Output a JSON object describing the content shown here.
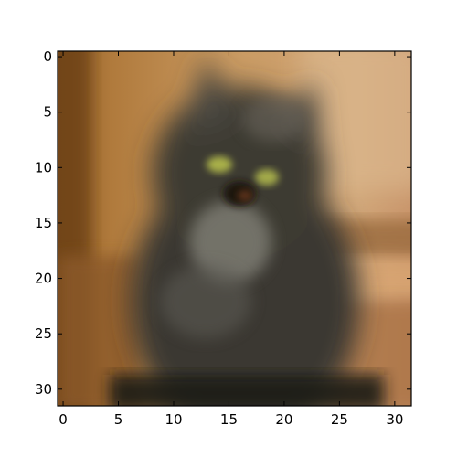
{
  "image": {
    "subject": "blurry-cat-photo",
    "pixel_grid": [
      32,
      32
    ],
    "colors": {
      "background_wood": "#b5824a",
      "cat_fur_dark": "#3a362f",
      "cat_chest_light": "#7a7870",
      "eyes": "#a9b04a",
      "frame": "#000000"
    }
  },
  "axes": {
    "x_tick_labels": [
      "0",
      "5",
      "10",
      "15",
      "20",
      "25",
      "30"
    ],
    "y_tick_labels": [
      "0",
      "5",
      "10",
      "15",
      "20",
      "25",
      "30"
    ],
    "x_tick_values": [
      0,
      5,
      10,
      15,
      20,
      25,
      30
    ],
    "y_tick_values": [
      0,
      5,
      10,
      15,
      20,
      25,
      30
    ],
    "xlim": [
      -0.5,
      31.5
    ],
    "ylim": [
      31.5,
      -0.5
    ]
  }
}
